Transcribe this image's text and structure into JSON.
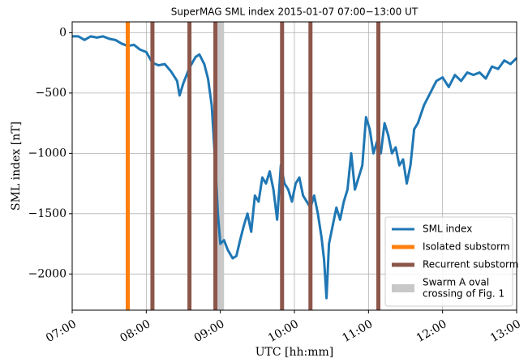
{
  "chart_data": {
    "type": "line",
    "title": "SuperMAG SML index 2015-01-07 07:00−13:00 UT",
    "xlabel": "UTC [hh:mm]",
    "ylabel": "SML index [nT]",
    "x": [
      "07:00",
      "07:05",
      "07:10",
      "07:15",
      "07:20",
      "07:25",
      "07:30",
      "07:35",
      "07:40",
      "07:45",
      "07:50",
      "07:55",
      "08:00",
      "08:05",
      "08:10",
      "08:15",
      "08:20",
      "08:25",
      "08:27",
      "08:30",
      "08:35",
      "08:40",
      "08:43",
      "08:47",
      "08:50",
      "08:53",
      "08:56",
      "08:58",
      "09:00",
      "09:03",
      "09:06",
      "09:10",
      "09:13",
      "09:16",
      "09:19",
      "09:22",
      "09:25",
      "09:28",
      "09:31",
      "09:34",
      "09:37",
      "09:40",
      "09:43",
      "09:46",
      "09:49",
      "09:52",
      "09:55",
      "09:58",
      "10:01",
      "10:04",
      "10:07",
      "10:10",
      "10:13",
      "10:16",
      "10:19",
      "10:22",
      "10:24",
      "10:26",
      "10:28",
      "10:31",
      "10:34",
      "10:37",
      "10:40",
      "10:43",
      "10:46",
      "10:49",
      "10:52",
      "10:55",
      "10:58",
      "11:01",
      "11:04",
      "11:07",
      "11:10",
      "11:13",
      "11:16",
      "11:19",
      "11:22",
      "11:25",
      "11:28",
      "11:31",
      "11:34",
      "11:37",
      "11:40",
      "11:45",
      "11:50",
      "11:55",
      "12:00",
      "12:05",
      "12:10",
      "12:15",
      "12:20",
      "12:25",
      "12:30",
      "12:35",
      "12:40",
      "12:45",
      "12:50",
      "12:55",
      "13:00"
    ],
    "series": [
      {
        "name": "SML index",
        "color": "#1f77b4",
        "values": [
          -30,
          -30,
          -60,
          -30,
          -40,
          -30,
          -50,
          -60,
          -90,
          -110,
          -100,
          -140,
          -160,
          -250,
          -270,
          -260,
          -320,
          -400,
          -520,
          -420,
          -290,
          -200,
          -180,
          -260,
          -380,
          -600,
          -1100,
          -1500,
          -1750,
          -1720,
          -1800,
          -1870,
          -1850,
          -1720,
          -1600,
          -1500,
          -1650,
          -1350,
          -1400,
          -1200,
          -1250,
          -1150,
          -1300,
          -1550,
          -1100,
          -1250,
          -1300,
          -1400,
          -1250,
          -1200,
          -1350,
          -1400,
          -1450,
          -1350,
          -1500,
          -1700,
          -1880,
          -2200,
          -1750,
          -1600,
          -1450,
          -1550,
          -1400,
          -1300,
          -1000,
          -1300,
          -1200,
          -1100,
          -700,
          -800,
          -1000,
          -900,
          -1000,
          -750,
          -850,
          -1000,
          -950,
          -1100,
          -1050,
          -1250,
          -1100,
          -800,
          -750,
          -600,
          -500,
          -400,
          -370,
          -450,
          -350,
          -400,
          -330,
          -350,
          -330,
          -380,
          -280,
          -300,
          -230,
          -260,
          -210
        ]
      }
    ],
    "markers": [
      {
        "name": "Isolated substorm",
        "color": "#ff7f0e",
        "x": [
          "07:45"
        ]
      },
      {
        "name": "Recurrent substorm",
        "color": "#8c564b",
        "x": [
          "08:05",
          "08:35",
          "08:56",
          "09:50",
          "10:13",
          "11:08"
        ]
      }
    ],
    "bands": [
      {
        "name": [
          "Swarm A oval",
          "crossing of Fig. 1"
        ],
        "color": "#c8c8c8",
        "x": [
          [
            "08:55",
            "09:03"
          ]
        ]
      }
    ],
    "xlim": [
      "07:00",
      "13:00"
    ],
    "xticks": [
      "07:00",
      "08:00",
      "09:00",
      "10:00",
      "11:00",
      "12:00",
      "13:00"
    ],
    "ylim": [
      -2300,
      90
    ],
    "yticks": [
      {
        "value": -2000,
        "label": "−2000"
      },
      {
        "value": -1500,
        "label": "−1500"
      },
      {
        "value": -1000,
        "label": "−1000"
      },
      {
        "value": -500,
        "label": "−500"
      },
      0
    ],
    "grid": true,
    "legend": "lower right"
  }
}
